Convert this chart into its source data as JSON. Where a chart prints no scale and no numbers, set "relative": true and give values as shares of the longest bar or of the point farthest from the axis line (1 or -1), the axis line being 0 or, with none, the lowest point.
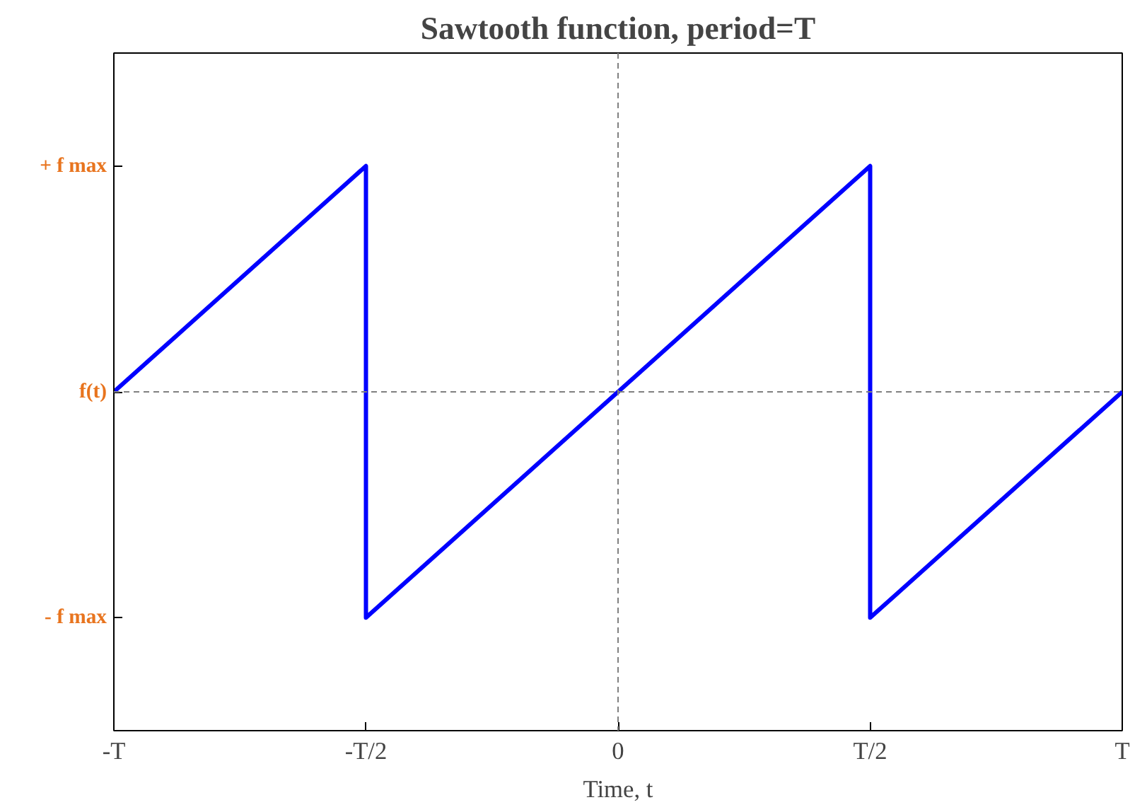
{
  "chart_data": {
    "type": "line",
    "title": "Sawtooth function, period=T",
    "xlabel": "Time, t",
    "relative": true,
    "categories": [
      "-T",
      "-T/2",
      "0",
      "T/2",
      "T"
    ],
    "series": [
      {
        "color": "#0000ff",
        "x": [
          "-T",
          "-T/2",
          "-T/2",
          "T/2",
          "T/2",
          "T"
        ],
        "values": [
          0,
          1,
          -1,
          1,
          -1,
          0
        ]
      }
    ],
    "annotations": [
      "+ f max",
      "f(t)",
      "- f max"
    ],
    "ref_lines": [
      {
        "axis": "x",
        "value": "0",
        "color": "#808080",
        "line_style": "dashed"
      },
      {
        "axis": "y",
        "value": 0,
        "color": "#808080",
        "line_style": "dashed"
      }
    ],
    "grid": false,
    "marker": "none",
    "line_style": "solid"
  }
}
